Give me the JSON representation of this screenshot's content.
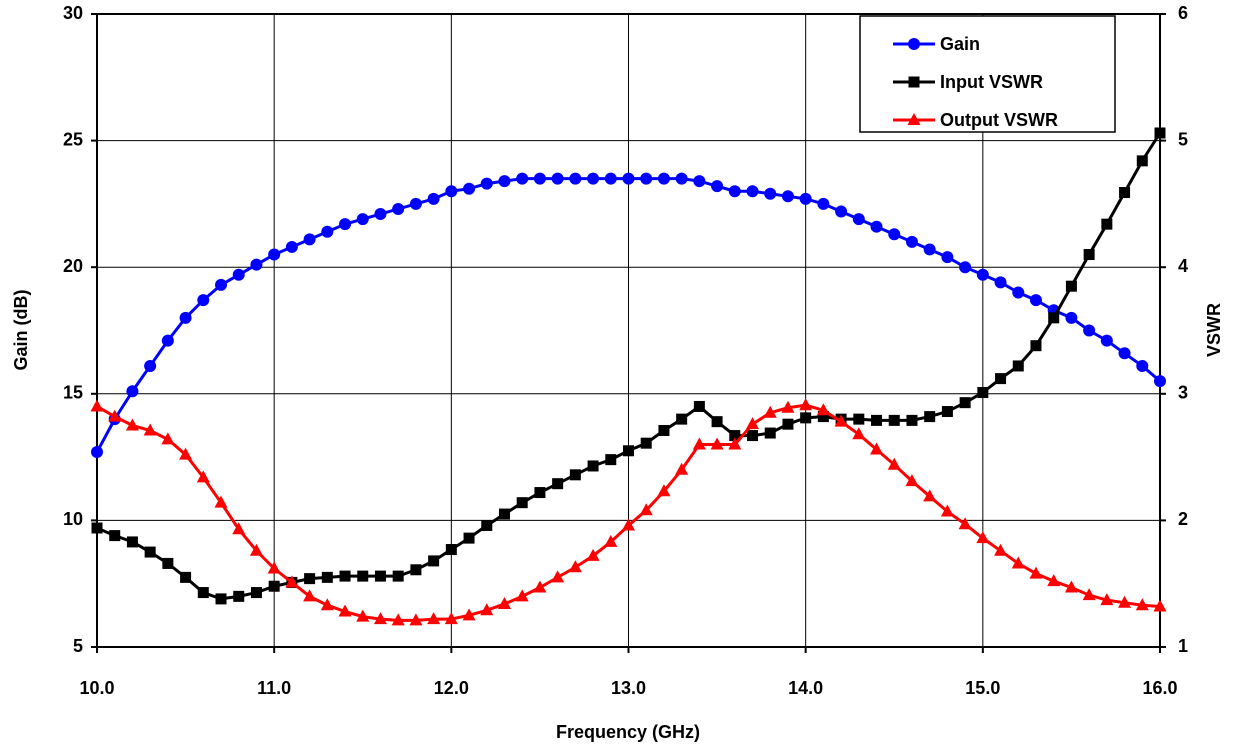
{
  "chart_data": {
    "type": "line",
    "x_label": "Frequency (GHz)",
    "y_label": "Gain (dB)",
    "y2_label": "VSWR",
    "x": [
      10.0,
      10.1,
      10.2,
      10.3,
      10.4,
      10.5,
      10.6,
      10.7,
      10.8,
      10.9,
      11.0,
      11.1,
      11.2,
      11.3,
      11.4,
      11.5,
      11.6,
      11.7,
      11.8,
      11.9,
      12.0,
      12.1,
      12.2,
      12.3,
      12.4,
      12.5,
      12.6,
      12.7,
      12.8,
      12.9,
      13.0,
      13.1,
      13.2,
      13.3,
      13.4,
      13.5,
      13.6,
      13.7,
      13.8,
      13.9,
      14.0,
      14.1,
      14.2,
      14.3,
      14.4,
      14.5,
      14.6,
      14.7,
      14.8,
      14.9,
      15.0,
      15.1,
      15.2,
      15.3,
      15.4,
      15.5,
      15.6,
      15.7,
      15.8,
      15.9,
      16.0
    ],
    "series": [
      {
        "name": "Gain",
        "color": "#0000ff",
        "marker": "circle",
        "values": [
          12.7,
          14.0,
          15.1,
          16.1,
          17.1,
          18.0,
          18.7,
          19.3,
          19.7,
          20.1,
          20.5,
          20.8,
          21.1,
          21.4,
          21.7,
          21.9,
          22.1,
          22.3,
          22.5,
          22.7,
          23.0,
          23.1,
          23.3,
          23.4,
          23.5,
          23.5,
          23.5,
          23.5,
          23.5,
          23.5,
          23.5,
          23.5,
          23.5,
          23.5,
          23.4,
          23.2,
          23.0,
          23.0,
          22.9,
          22.8,
          22.7,
          22.5,
          22.2,
          21.9,
          21.6,
          21.3,
          21.0,
          20.7,
          20.4,
          20.0,
          19.7,
          19.4,
          19.0,
          18.7,
          18.3,
          18.0,
          17.5,
          17.1,
          16.6,
          16.1,
          15.5
        ]
      },
      {
        "name": "Input VSWR",
        "color": "#000000",
        "marker": "square",
        "axis": "y2",
        "values": [
          1.94,
          1.88,
          1.83,
          1.75,
          1.66,
          1.55,
          1.43,
          1.38,
          1.4,
          1.43,
          1.48,
          1.51,
          1.54,
          1.55,
          1.56,
          1.56,
          1.56,
          1.56,
          1.61,
          1.68,
          1.77,
          1.86,
          1.96,
          2.05,
          2.14,
          2.22,
          2.29,
          2.36,
          2.43,
          2.48,
          2.55,
          2.61,
          2.71,
          2.8,
          2.9,
          2.78,
          2.67,
          2.67,
          2.69,
          2.76,
          2.81,
          2.82,
          2.8,
          2.8,
          2.79,
          2.79,
          2.79,
          2.82,
          2.86,
          2.93,
          3.01,
          3.12,
          3.22,
          3.38,
          3.6,
          3.85,
          4.1,
          4.34,
          4.59,
          4.84,
          5.06
        ]
      },
      {
        "name": "Output VSWR",
        "color": "#ff0000",
        "marker": "triangle",
        "axis": "y2",
        "values": [
          2.9,
          2.82,
          2.75,
          2.71,
          2.64,
          2.52,
          2.34,
          2.14,
          1.93,
          1.76,
          1.62,
          1.51,
          1.4,
          1.33,
          1.28,
          1.24,
          1.22,
          1.21,
          1.21,
          1.22,
          1.22,
          1.25,
          1.29,
          1.34,
          1.4,
          1.47,
          1.55,
          1.63,
          1.72,
          1.83,
          1.96,
          2.08,
          2.23,
          2.4,
          2.6,
          2.6,
          2.6,
          2.76,
          2.85,
          2.89,
          2.91,
          2.87,
          2.78,
          2.68,
          2.56,
          2.44,
          2.31,
          2.19,
          2.07,
          1.97,
          1.86,
          1.76,
          1.66,
          1.58,
          1.52,
          1.47,
          1.41,
          1.37,
          1.35,
          1.33,
          1.32
        ]
      }
    ],
    "xlim": [
      10,
      16
    ],
    "xticks": [
      {
        "value": 10,
        "label": "10.0"
      },
      {
        "value": 11,
        "label": "11.0"
      },
      {
        "value": 12,
        "label": "12.0"
      },
      {
        "value": 13,
        "label": "13.0"
      },
      {
        "value": 14,
        "label": "14.0"
      },
      {
        "value": 15,
        "label": "15.0"
      },
      {
        "value": 16,
        "label": "16.0"
      }
    ],
    "ylim": [
      5,
      30
    ],
    "yticks": [
      5,
      10,
      15,
      20,
      25,
      30
    ],
    "y2lim": [
      1,
      6
    ],
    "y2ticks": [
      1,
      2,
      3,
      4,
      5,
      6
    ],
    "grid": true,
    "legend": "upper right"
  }
}
